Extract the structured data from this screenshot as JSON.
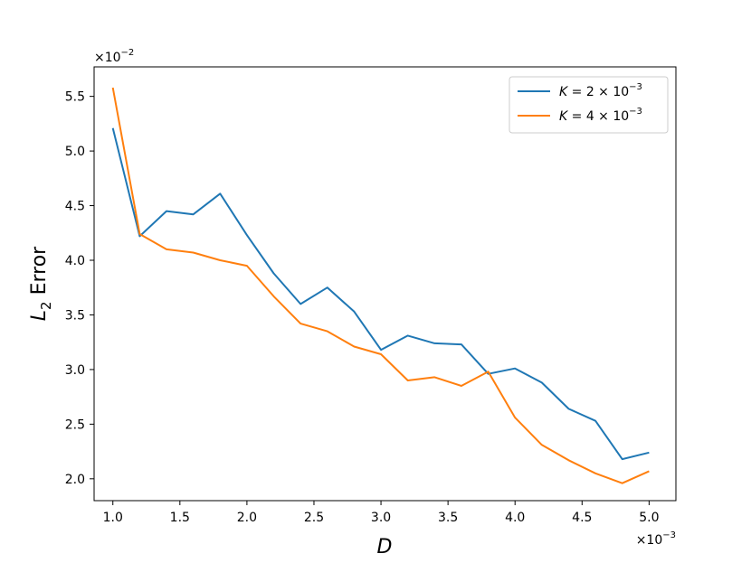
{
  "chart_data": {
    "type": "line",
    "title": "",
    "xlabel": "D",
    "ylabel_main": "L",
    "ylabel_sub": "2",
    "ylabel_rest": " Error",
    "x_offset_text": "×10",
    "x_offset_exp": "−3",
    "y_offset_text": "×10",
    "y_offset_exp": "−2",
    "xlim": [
      0.86,
      5.2
    ],
    "ylim": [
      1.8,
      5.77
    ],
    "xticks": [
      1.0,
      1.5,
      2.0,
      2.5,
      3.0,
      3.5,
      4.0,
      4.5,
      5.0
    ],
    "xtick_labels": [
      "1.0",
      "1.5",
      "2.0",
      "2.5",
      "3.0",
      "3.5",
      "4.0",
      "4.5",
      "5.0"
    ],
    "yticks": [
      2.0,
      2.5,
      3.0,
      3.5,
      4.0,
      4.5,
      5.0,
      5.5
    ],
    "ytick_labels": [
      "2.0",
      "2.5",
      "3.0",
      "3.5",
      "4.0",
      "4.5",
      "5.0",
      "5.5"
    ],
    "grid": false,
    "legend_position": "top-right",
    "x": [
      1.0,
      1.2,
      1.4,
      1.6,
      1.8,
      2.0,
      2.2,
      2.4,
      2.6,
      2.8,
      3.0,
      3.2,
      3.4,
      3.6,
      3.8,
      4.0,
      4.2,
      4.4,
      4.6,
      4.8,
      5.0
    ],
    "series": [
      {
        "name_var": "K",
        "name_eq": " = 2 × 10",
        "name_exp": "−3",
        "color": "#1f77b4",
        "values": [
          5.21,
          4.22,
          4.45,
          4.42,
          4.61,
          4.23,
          3.88,
          3.6,
          3.75,
          3.53,
          3.18,
          3.31,
          3.24,
          3.23,
          2.96,
          3.01,
          2.88,
          2.64,
          2.53,
          2.18,
          2.24
        ]
      },
      {
        "name_var": "K",
        "name_eq": " = 4 × 10",
        "name_exp": "−3",
        "color": "#ff7f0e",
        "values": [
          5.58,
          4.24,
          4.1,
          4.07,
          4.0,
          3.95,
          3.67,
          3.42,
          3.35,
          3.21,
          3.14,
          2.9,
          2.93,
          2.85,
          2.98,
          2.56,
          2.31,
          2.17,
          2.05,
          1.96,
          2.07
        ]
      }
    ]
  }
}
